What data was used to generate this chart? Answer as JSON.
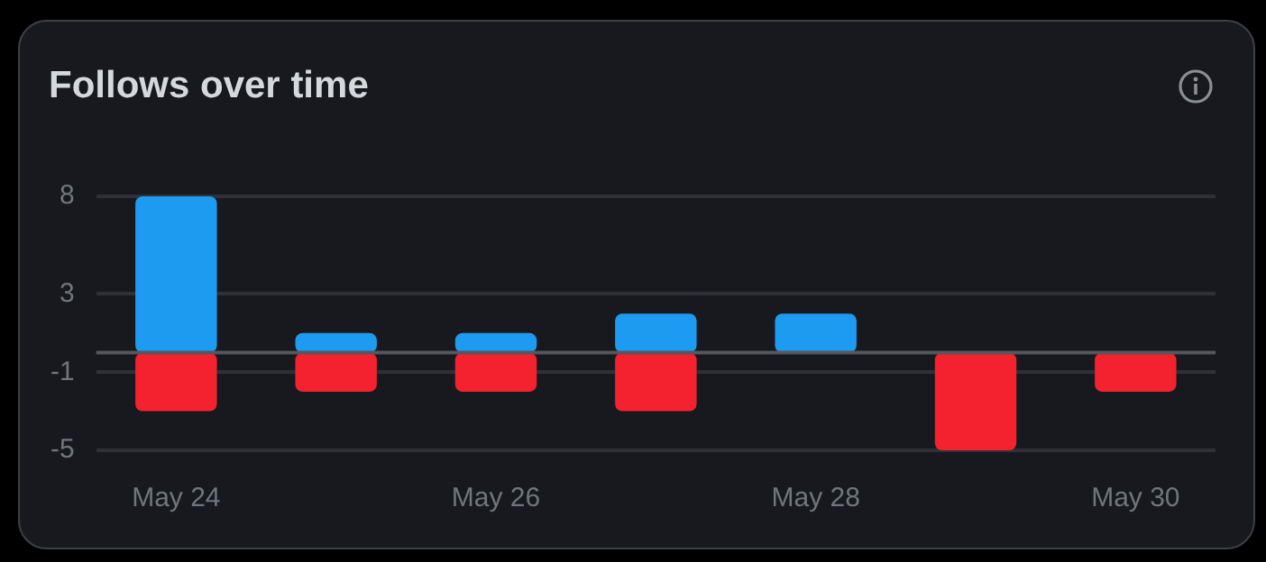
{
  "chart_data": {
    "type": "bar",
    "title": "Follows over time",
    "categories": [
      "May 24",
      null,
      "May 26",
      null,
      "May 28",
      null,
      "May 30"
    ],
    "series": [
      {
        "color": "#1d9bf0",
        "values": [
          8,
          1,
          1,
          2,
          2,
          null,
          null
        ]
      },
      {
        "color": "#f4212e",
        "values": [
          -3,
          -2,
          -2,
          -3,
          null,
          -5,
          -2
        ]
      }
    ],
    "stacked": true,
    "ylim": [
      -5,
      8
    ],
    "yticks": [
      -5,
      -1,
      3,
      8
    ],
    "grid": "y",
    "legend": false,
    "ref_lines": [
      {
        "axis": "y",
        "value": 0,
        "color": "#55575c"
      }
    ]
  }
}
